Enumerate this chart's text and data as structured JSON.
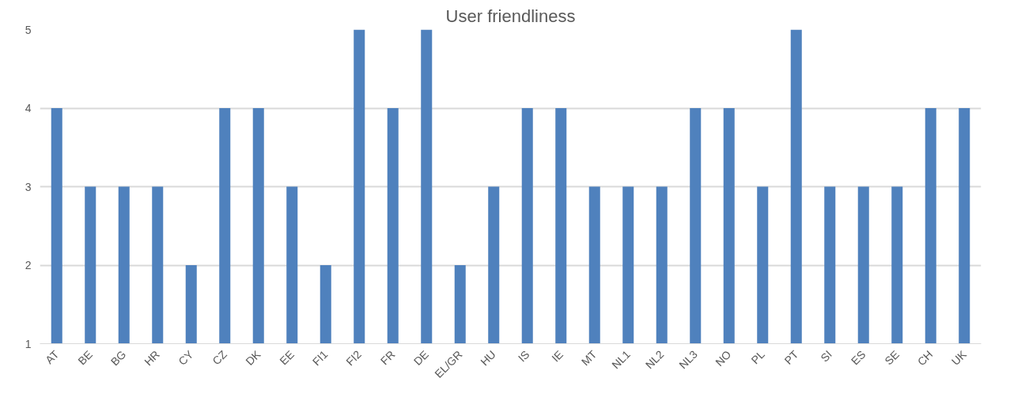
{
  "chart_data": {
    "type": "bar",
    "title": "User friendliness",
    "categories": [
      "AT",
      "BE",
      "BG",
      "HR",
      "CY",
      "CZ",
      "DK",
      "EE",
      "FI1",
      "FI2",
      "FR",
      "DE",
      "EL/GR",
      "HU",
      "IS",
      "IE",
      "MT",
      "NL1",
      "NL2",
      "NL3",
      "NO",
      "PL",
      "PT",
      "SI",
      "ES",
      "SE",
      "CH",
      "UK"
    ],
    "values": [
      4,
      3,
      3,
      3,
      2,
      4,
      4,
      3,
      2,
      5,
      4,
      5,
      2,
      3,
      4,
      4,
      3,
      3,
      3,
      4,
      4,
      3,
      5,
      3,
      3,
      3,
      4,
      4
    ],
    "color": "#4f81bd",
    "ylim": [
      1,
      5
    ],
    "yticks": [
      1,
      2,
      3,
      4,
      5
    ],
    "grid": "y"
  }
}
